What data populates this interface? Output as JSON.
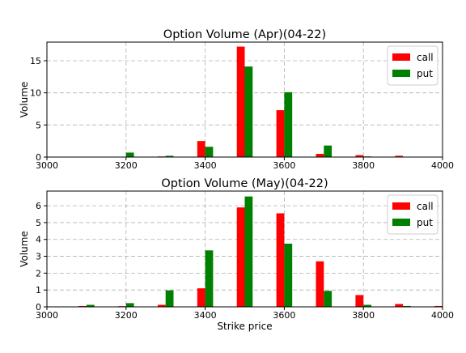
{
  "chart_data": [
    {
      "type": "bar",
      "title": "Option Volume (Apr)(04-22)",
      "y_label": "Volume",
      "x": [
        3200,
        3300,
        3400,
        3500,
        3600,
        3700,
        3800,
        3900
      ],
      "series": [
        {
          "name": "call",
          "color": "#ff0000",
          "values": [
            0,
            0.1,
            2.5,
            17.2,
            7.3,
            0.5,
            0.3,
            0.2
          ]
        },
        {
          "name": "put",
          "color": "#008000",
          "values": [
            0.7,
            0.2,
            1.6,
            14.1,
            10.1,
            1.8,
            0.1,
            0
          ]
        }
      ],
      "xlim": [
        3000,
        4000
      ],
      "xticks": [
        3000,
        3200,
        3400,
        3600,
        3800,
        4000
      ],
      "ylim": [
        0,
        17.9
      ],
      "yticks": [
        0,
        5,
        10,
        15
      ],
      "grid": true,
      "legend": "upper right"
    },
    {
      "type": "bar",
      "title": "Option Volume (May)(04-22)",
      "x_label": "Strike price",
      "y_label": "Volume",
      "x": [
        3100,
        3200,
        3300,
        3400,
        3500,
        3600,
        3700,
        3800,
        3900,
        4000
      ],
      "series": [
        {
          "name": "call",
          "color": "#ff0000",
          "values": [
            0.05,
            0.04,
            0.12,
            1.1,
            5.9,
            5.55,
            2.7,
            0.7,
            0.17,
            0.05
          ]
        },
        {
          "name": "put",
          "color": "#008000",
          "values": [
            0.12,
            0.22,
            0.98,
            3.35,
            6.55,
            3.75,
            0.95,
            0.12,
            0.05,
            0
          ]
        }
      ],
      "xlim": [
        3000,
        4000
      ],
      "xticks": [
        3000,
        3200,
        3400,
        3600,
        3800,
        4000
      ],
      "ylim": [
        0,
        6.87
      ],
      "yticks": [
        0,
        1,
        2,
        3,
        4,
        5,
        6
      ],
      "grid": true,
      "legend": "upper right"
    }
  ]
}
